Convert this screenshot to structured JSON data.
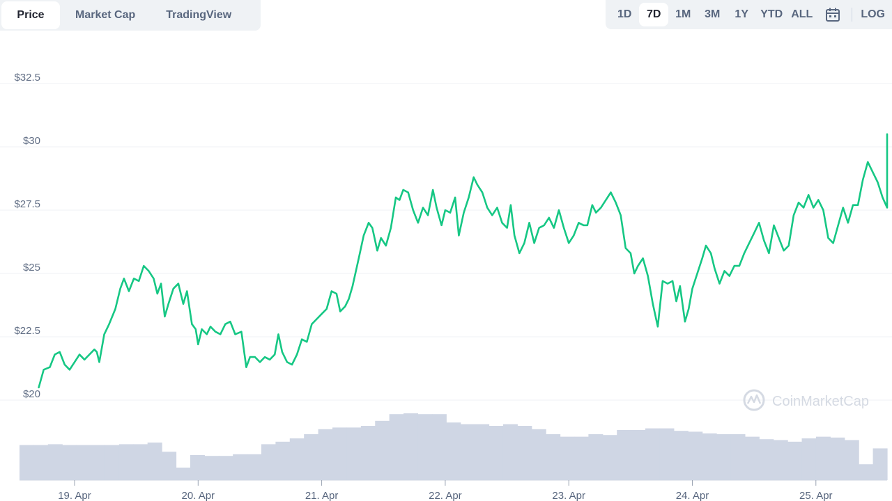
{
  "tabs": {
    "price": "Price",
    "market_cap": "Market Cap",
    "tradingview": "TradingView"
  },
  "ranges": [
    {
      "label": "1D"
    },
    {
      "label": "7D",
      "active": true
    },
    {
      "label": "1M"
    },
    {
      "label": "3M"
    },
    {
      "label": "1Y"
    },
    {
      "label": "YTD"
    },
    {
      "label": "ALL"
    }
  ],
  "calendar_icon": "calendar-icon",
  "log_label": "LOG",
  "watermark": "CoinMarketCap",
  "colors": {
    "line": "#16c784",
    "volume": "#cfd6e4",
    "grid": "#eff2f5"
  },
  "chart_data": {
    "type": "line",
    "title": "",
    "xlabel": "",
    "ylabel": "",
    "ylim": [
      19,
      33
    ],
    "y_ticks": [
      "$20",
      "$22.5",
      "$25",
      "$27.5",
      "$30",
      "$32.5"
    ],
    "y_tick_values": [
      20,
      22.5,
      25,
      27.5,
      30,
      32.5
    ],
    "x_ticks": [
      "19. Apr",
      "20. Apr",
      "21. Apr",
      "22. Apr",
      "23. Apr",
      "24. Apr",
      "25. Apr"
    ],
    "xlim": [
      18.7,
      25.7
    ],
    "price": [
      [
        18.71,
        20.5
      ],
      [
        18.75,
        21.2
      ],
      [
        18.8,
        21.3
      ],
      [
        18.84,
        21.8
      ],
      [
        18.88,
        21.9
      ],
      [
        18.92,
        21.4
      ],
      [
        18.96,
        21.2
      ],
      [
        19.0,
        21.5
      ],
      [
        19.04,
        21.8
      ],
      [
        19.08,
        21.6
      ],
      [
        19.12,
        21.8
      ],
      [
        19.16,
        22.0
      ],
      [
        19.18,
        21.9
      ],
      [
        19.2,
        21.5
      ],
      [
        19.24,
        22.6
      ],
      [
        19.28,
        23.0
      ],
      [
        19.33,
        23.6
      ],
      [
        19.37,
        24.4
      ],
      [
        19.4,
        24.8
      ],
      [
        19.44,
        24.3
      ],
      [
        19.48,
        24.8
      ],
      [
        19.52,
        24.7
      ],
      [
        19.56,
        25.3
      ],
      [
        19.6,
        25.1
      ],
      [
        19.64,
        24.8
      ],
      [
        19.67,
        24.2
      ],
      [
        19.7,
        24.6
      ],
      [
        19.73,
        23.3
      ],
      [
        19.76,
        23.8
      ],
      [
        19.8,
        24.4
      ],
      [
        19.84,
        24.6
      ],
      [
        19.88,
        23.8
      ],
      [
        19.91,
        24.3
      ],
      [
        19.95,
        23.0
      ],
      [
        19.98,
        22.8
      ],
      [
        20.0,
        22.2
      ],
      [
        20.03,
        22.8
      ],
      [
        20.07,
        22.6
      ],
      [
        20.1,
        22.9
      ],
      [
        20.14,
        22.7
      ],
      [
        20.18,
        22.6
      ],
      [
        20.22,
        23.0
      ],
      [
        20.26,
        23.1
      ],
      [
        20.3,
        22.6
      ],
      [
        20.35,
        22.7
      ],
      [
        20.39,
        21.3
      ],
      [
        20.42,
        21.7
      ],
      [
        20.46,
        21.7
      ],
      [
        20.5,
        21.5
      ],
      [
        20.54,
        21.7
      ],
      [
        20.58,
        21.6
      ],
      [
        20.62,
        21.8
      ],
      [
        20.65,
        22.6
      ],
      [
        20.68,
        21.9
      ],
      [
        20.72,
        21.5
      ],
      [
        20.76,
        21.4
      ],
      [
        20.8,
        21.8
      ],
      [
        20.84,
        22.4
      ],
      [
        20.88,
        22.3
      ],
      [
        20.92,
        23.0
      ],
      [
        20.96,
        23.2
      ],
      [
        21.0,
        23.4
      ],
      [
        21.04,
        23.6
      ],
      [
        21.08,
        24.3
      ],
      [
        21.12,
        24.2
      ],
      [
        21.15,
        23.5
      ],
      [
        21.19,
        23.7
      ],
      [
        21.22,
        24.0
      ],
      [
        21.25,
        24.5
      ],
      [
        21.3,
        25.6
      ],
      [
        21.34,
        26.5
      ],
      [
        21.38,
        27.0
      ],
      [
        21.41,
        26.8
      ],
      [
        21.45,
        25.9
      ],
      [
        21.48,
        26.4
      ],
      [
        21.52,
        26.1
      ],
      [
        21.56,
        26.8
      ],
      [
        21.6,
        28.0
      ],
      [
        21.63,
        27.9
      ],
      [
        21.66,
        28.3
      ],
      [
        21.7,
        28.2
      ],
      [
        21.74,
        27.5
      ],
      [
        21.78,
        27.0
      ],
      [
        21.82,
        27.6
      ],
      [
        21.86,
        27.3
      ],
      [
        21.9,
        28.3
      ],
      [
        21.93,
        27.6
      ],
      [
        21.97,
        26.9
      ],
      [
        22.0,
        27.5
      ],
      [
        22.04,
        27.4
      ],
      [
        22.08,
        28.0
      ],
      [
        22.11,
        26.5
      ],
      [
        22.15,
        27.4
      ],
      [
        22.19,
        28.0
      ],
      [
        22.23,
        28.8
      ],
      [
        22.26,
        28.5
      ],
      [
        22.3,
        28.2
      ],
      [
        22.34,
        27.6
      ],
      [
        22.38,
        27.3
      ],
      [
        22.42,
        27.6
      ],
      [
        22.46,
        27.0
      ],
      [
        22.5,
        26.8
      ],
      [
        22.53,
        27.7
      ],
      [
        22.56,
        26.5
      ],
      [
        22.6,
        25.8
      ],
      [
        22.64,
        26.2
      ],
      [
        22.68,
        27.0
      ],
      [
        22.72,
        26.2
      ],
      [
        22.76,
        26.8
      ],
      [
        22.8,
        26.9
      ],
      [
        22.84,
        27.2
      ],
      [
        22.88,
        26.8
      ],
      [
        22.92,
        27.5
      ],
      [
        22.96,
        26.8
      ],
      [
        23.0,
        26.2
      ],
      [
        23.04,
        26.5
      ],
      [
        23.08,
        27.0
      ],
      [
        23.12,
        26.9
      ],
      [
        23.15,
        26.9
      ],
      [
        23.19,
        27.7
      ],
      [
        23.22,
        27.4
      ],
      [
        23.26,
        27.6
      ],
      [
        23.3,
        27.9
      ],
      [
        23.34,
        28.2
      ],
      [
        23.38,
        27.8
      ],
      [
        23.42,
        27.3
      ],
      [
        23.46,
        26.0
      ],
      [
        23.5,
        25.8
      ],
      [
        23.53,
        25.0
      ],
      [
        23.56,
        25.3
      ],
      [
        23.6,
        25.6
      ],
      [
        23.64,
        24.9
      ],
      [
        23.68,
        23.8
      ],
      [
        23.72,
        22.9
      ],
      [
        23.76,
        24.7
      ],
      [
        23.8,
        24.6
      ],
      [
        23.84,
        24.7
      ],
      [
        23.87,
        23.9
      ],
      [
        23.9,
        24.5
      ],
      [
        23.94,
        23.1
      ],
      [
        23.97,
        23.6
      ],
      [
        24.0,
        24.4
      ],
      [
        24.04,
        25.0
      ],
      [
        24.08,
        25.6
      ],
      [
        24.11,
        26.1
      ],
      [
        24.15,
        25.8
      ],
      [
        24.18,
        25.2
      ],
      [
        24.22,
        24.6
      ],
      [
        24.26,
        25.1
      ],
      [
        24.3,
        24.9
      ],
      [
        24.34,
        25.3
      ],
      [
        24.38,
        25.3
      ],
      [
        24.42,
        25.8
      ],
      [
        24.46,
        26.2
      ],
      [
        24.5,
        26.6
      ],
      [
        24.54,
        27.0
      ],
      [
        24.58,
        26.3
      ],
      [
        24.62,
        25.8
      ],
      [
        24.66,
        26.9
      ],
      [
        24.7,
        26.4
      ],
      [
        24.74,
        25.9
      ],
      [
        24.78,
        26.1
      ],
      [
        24.82,
        27.3
      ],
      [
        24.86,
        27.8
      ],
      [
        24.9,
        27.6
      ],
      [
        24.94,
        28.1
      ],
      [
        24.98,
        27.6
      ],
      [
        25.02,
        27.9
      ],
      [
        25.06,
        27.5
      ],
      [
        25.1,
        26.4
      ],
      [
        25.14,
        26.2
      ],
      [
        25.18,
        26.9
      ],
      [
        25.22,
        27.6
      ],
      [
        25.26,
        27.0
      ],
      [
        25.3,
        27.7
      ],
      [
        25.34,
        27.7
      ],
      [
        25.38,
        28.7
      ],
      [
        25.42,
        29.4
      ],
      [
        25.46,
        29.0
      ],
      [
        25.5,
        28.6
      ],
      [
        25.54,
        28.0
      ],
      [
        25.58,
        27.6
      ],
      [
        25.62,
        28.5
      ],
      [
        25.66,
        29.6
      ],
      [
        25.7,
        30.5
      ]
    ],
    "volume_relative": [
      0.42,
      0.42,
      0.43,
      0.42,
      0.42,
      0.42,
      0.42,
      0.43,
      0.43,
      0.45,
      0.34,
      0.15,
      0.3,
      0.29,
      0.29,
      0.31,
      0.31,
      0.43,
      0.46,
      0.5,
      0.55,
      0.61,
      0.63,
      0.63,
      0.65,
      0.71,
      0.79,
      0.8,
      0.79,
      0.79,
      0.69,
      0.67,
      0.67,
      0.65,
      0.67,
      0.65,
      0.61,
      0.55,
      0.52,
      0.52,
      0.55,
      0.54,
      0.6,
      0.6,
      0.62,
      0.62,
      0.59,
      0.58,
      0.56,
      0.55,
      0.55,
      0.52,
      0.49,
      0.48,
      0.46,
      0.5,
      0.52,
      0.51,
      0.48,
      0.19,
      0.38
    ]
  }
}
